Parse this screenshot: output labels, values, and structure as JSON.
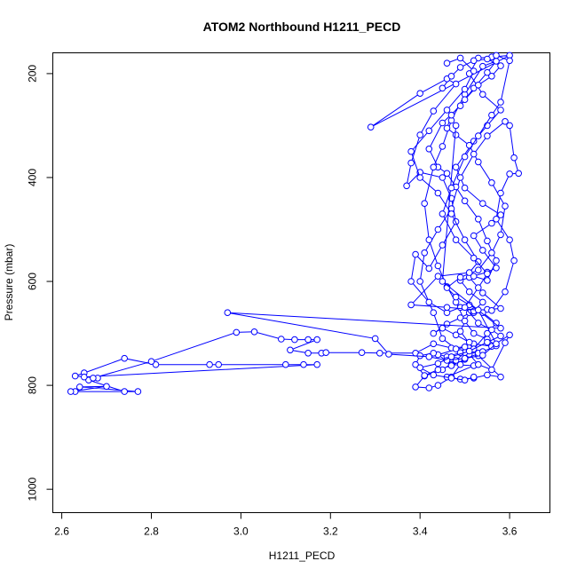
{
  "chart_data": {
    "type": "line",
    "title": "ATOM2 Northbound H1211_PECD",
    "xlabel": "H1211_PECD",
    "ylabel": "Pressure (mbar)",
    "xlim": [
      2.58,
      3.69
    ],
    "ylim": [
      1045,
      160
    ],
    "y_reversed": true,
    "grid": false,
    "legend": "none",
    "marker": "open-circle",
    "color": "#0000ff",
    "x_ticks": [
      2.6,
      2.8,
      3.0,
      3.2,
      3.4,
      3.6
    ],
    "x_tick_labels": [
      "2.6",
      "2.8",
      "3.0",
      "3.2",
      "3.4",
      "3.6"
    ],
    "y_ticks": [
      200,
      400,
      600,
      800,
      1000
    ],
    "y_tick_labels": [
      "200",
      "400",
      "600",
      "800",
      "1000"
    ],
    "series": [
      {
        "name": "",
        "points": [
          [
            2.63,
            812
          ],
          [
            2.77,
            812
          ],
          [
            2.64,
            803
          ],
          [
            2.7,
            802
          ],
          [
            2.62,
            812
          ],
          [
            2.74,
            812
          ],
          [
            2.66,
            790
          ],
          [
            2.68,
            786
          ],
          [
            2.63,
            782
          ],
          [
            2.65,
            776
          ],
          [
            2.74,
            748
          ],
          [
            2.81,
            760
          ],
          [
            2.93,
            760
          ],
          [
            2.95,
            760
          ],
          [
            3.1,
            760
          ],
          [
            3.14,
            760
          ],
          [
            3.17,
            760
          ],
          [
            2.65,
            784
          ],
          [
            2.67,
            786
          ],
          [
            2.8,
            754
          ],
          [
            2.99,
            698
          ],
          [
            3.03,
            697
          ],
          [
            3.09,
            711
          ],
          [
            3.12,
            712
          ],
          [
            3.15,
            712
          ],
          [
            3.17,
            712
          ],
          [
            3.11,
            732
          ],
          [
            3.15,
            738
          ],
          [
            3.18,
            738
          ],
          [
            3.19,
            737
          ],
          [
            3.27,
            737
          ],
          [
            3.31,
            738
          ],
          [
            3.39,
            738
          ],
          [
            3.43,
            720
          ],
          [
            3.47,
            728
          ],
          [
            3.5,
            726
          ],
          [
            3.44,
            741
          ],
          [
            3.47,
            760
          ],
          [
            3.52,
            762
          ],
          [
            3.46,
            784
          ],
          [
            3.49,
            788
          ],
          [
            3.52,
            786
          ],
          [
            3.55,
            780
          ],
          [
            3.58,
            784
          ],
          [
            3.53,
            743
          ],
          [
            3.49,
            696
          ],
          [
            3.51,
            660
          ],
          [
            3.55,
            654
          ],
          [
            3.58,
            652
          ],
          [
            3.54,
            622
          ],
          [
            3.51,
            592
          ],
          [
            3.55,
            582
          ],
          [
            3.57,
            574
          ],
          [
            3.54,
            540
          ],
          [
            3.52,
            512
          ],
          [
            3.56,
            488
          ],
          [
            3.58,
            472
          ],
          [
            3.54,
            450
          ],
          [
            3.5,
            420
          ],
          [
            3.48,
            380
          ],
          [
            3.52,
            330
          ],
          [
            3.55,
            300
          ],
          [
            3.58,
            270
          ],
          [
            3.54,
            240
          ],
          [
            3.51,
            200
          ],
          [
            3.53,
            170
          ],
          [
            3.56,
            168
          ],
          [
            3.6,
            165
          ],
          [
            3.29,
            303
          ],
          [
            3.4,
            238
          ],
          [
            3.46,
            210
          ],
          [
            3.48,
            220
          ],
          [
            3.43,
            272
          ],
          [
            3.4,
            318
          ],
          [
            3.38,
            372
          ],
          [
            3.37,
            416
          ],
          [
            3.4,
            390
          ],
          [
            3.45,
            400
          ],
          [
            3.47,
            440
          ],
          [
            3.48,
            485
          ],
          [
            3.45,
            530
          ],
          [
            3.42,
            575
          ],
          [
            3.39,
            548
          ],
          [
            3.38,
            600
          ],
          [
            3.42,
            640
          ],
          [
            3.46,
            660
          ],
          [
            3.49,
            650
          ],
          [
            3.52,
            660
          ],
          [
            3.56,
            656
          ],
          [
            3.59,
            620
          ],
          [
            3.61,
            560
          ],
          [
            3.6,
            520
          ],
          [
            3.57,
            480
          ],
          [
            3.58,
            430
          ],
          [
            3.6,
            393
          ],
          [
            3.62,
            392
          ],
          [
            3.61,
            362
          ],
          [
            3.6,
            300
          ],
          [
            3.59,
            292
          ],
          [
            3.55,
            320
          ],
          [
            3.52,
            355
          ],
          [
            3.49,
            400
          ],
          [
            3.47,
            460
          ],
          [
            3.44,
            500
          ],
          [
            3.41,
            545
          ],
          [
            3.4,
            600
          ],
          [
            3.43,
            660
          ],
          [
            3.45,
            710
          ],
          [
            3.48,
            730
          ],
          [
            3.51,
            740
          ],
          [
            3.53,
            760
          ],
          [
            3.56,
            770
          ],
          [
            3.59,
            718
          ],
          [
            3.6,
            703
          ],
          [
            3.56,
            725
          ],
          [
            3.52,
            720
          ],
          [
            3.49,
            760
          ],
          [
            3.47,
            784
          ],
          [
            3.44,
            800
          ],
          [
            3.42,
            805
          ],
          [
            3.39,
            803
          ],
          [
            3.41,
            782
          ],
          [
            3.45,
            770
          ],
          [
            3.48,
            752
          ],
          [
            3.5,
            737
          ],
          [
            3.53,
            738
          ],
          [
            3.51,
            717
          ],
          [
            3.48,
            703
          ],
          [
            3.45,
            690
          ],
          [
            3.43,
            700
          ],
          [
            3.46,
            682
          ],
          [
            3.49,
            670
          ],
          [
            3.52,
            657
          ],
          [
            3.54,
            640
          ],
          [
            3.51,
            620
          ],
          [
            3.49,
            598
          ],
          [
            3.52,
            590
          ],
          [
            3.55,
            598
          ],
          [
            3.57,
            560
          ],
          [
            3.55,
            522
          ],
          [
            3.53,
            480
          ],
          [
            3.5,
            445
          ],
          [
            3.48,
            418
          ],
          [
            3.46,
            392
          ],
          [
            3.44,
            380
          ],
          [
            3.42,
            345
          ],
          [
            3.45,
            295
          ],
          [
            3.49,
            262
          ],
          [
            3.52,
            228
          ],
          [
            3.55,
            198
          ],
          [
            3.57,
            176
          ],
          [
            3.54,
            186
          ],
          [
            3.5,
            240
          ],
          [
            3.47,
            290
          ],
          [
            3.45,
            340
          ],
          [
            3.43,
            380
          ],
          [
            3.41,
            450
          ],
          [
            3.42,
            520
          ],
          [
            3.44,
            570
          ],
          [
            3.46,
            610
          ],
          [
            3.48,
            640
          ],
          [
            3.5,
            676
          ],
          [
            3.52,
            700
          ],
          [
            3.55,
            711
          ],
          [
            3.57,
            724
          ],
          [
            3.54,
            735
          ],
          [
            3.5,
            750
          ],
          [
            3.47,
            762
          ],
          [
            3.44,
            770
          ],
          [
            3.41,
            781
          ],
          [
            3.39,
            760
          ],
          [
            3.4,
            743
          ],
          [
            3.43,
            738
          ],
          [
            3.46,
            745
          ],
          [
            3.49,
            737
          ],
          [
            3.52,
            730
          ],
          [
            3.55,
            700
          ],
          [
            3.57,
            680
          ],
          [
            3.54,
            660
          ],
          [
            3.51,
            645
          ],
          [
            3.48,
            630
          ],
          [
            3.46,
            612
          ],
          [
            3.49,
            592
          ],
          [
            3.53,
            578
          ],
          [
            3.56,
            545
          ],
          [
            3.58,
            510
          ],
          [
            3.59,
            455
          ],
          [
            3.56,
            410
          ],
          [
            3.53,
            370
          ],
          [
            3.51,
            338
          ],
          [
            3.48,
            318
          ],
          [
            3.46,
            305
          ],
          [
            3.47,
            280
          ],
          [
            3.5,
            250
          ],
          [
            3.53,
            222
          ],
          [
            3.56,
            205
          ],
          [
            3.58,
            185
          ],
          [
            3.55,
            172
          ],
          [
            3.52,
            175
          ],
          [
            3.49,
            188
          ],
          [
            3.47,
            205
          ],
          [
            3.45,
            228
          ]
        ]
      },
      {
        "name": "",
        "points": [
          [
            3.48,
            300
          ],
          [
            3.45,
            600
          ],
          [
            3.58,
            690
          ],
          [
            2.97,
            660
          ],
          [
            3.3,
            710
          ],
          [
            3.33,
            740
          ],
          [
            3.42,
            745
          ],
          [
            3.46,
            752
          ],
          [
            3.5,
            748
          ],
          [
            3.54,
            742
          ],
          [
            3.57,
            720
          ],
          [
            3.53,
            655
          ],
          [
            3.46,
            650
          ],
          [
            3.38,
            645
          ],
          [
            3.44,
            590
          ],
          [
            3.51,
            583
          ],
          [
            3.53,
            562
          ],
          [
            3.5,
            520
          ],
          [
            3.47,
            470
          ],
          [
            3.44,
            430
          ],
          [
            3.4,
            400
          ],
          [
            3.38,
            350
          ],
          [
            3.42,
            310
          ],
          [
            3.46,
            270
          ],
          [
            3.5,
            230
          ],
          [
            3.52,
            195
          ],
          [
            3.49,
            170
          ],
          [
            3.46,
            180
          ]
        ]
      },
      {
        "name": "",
        "points": [
          [
            3.57,
            165
          ],
          [
            3.6,
            175
          ],
          [
            3.58,
            255
          ],
          [
            3.56,
            280
          ],
          [
            3.53,
            320
          ],
          [
            3.5,
            360
          ],
          [
            3.47,
            420
          ],
          [
            3.45,
            470
          ],
          [
            3.48,
            520
          ],
          [
            3.52,
            555
          ],
          [
            3.55,
            585
          ],
          [
            3.53,
            612
          ],
          [
            3.5,
            650
          ],
          [
            3.53,
            680
          ],
          [
            3.56,
            693
          ],
          [
            3.58,
            705
          ],
          [
            3.55,
            717
          ],
          [
            3.51,
            734
          ],
          [
            3.47,
            745
          ],
          [
            3.44,
            758
          ],
          [
            3.4,
            766
          ],
          [
            3.43,
            780
          ],
          [
            3.47,
            786
          ],
          [
            3.5,
            790
          ],
          [
            3.52,
            784
          ]
        ]
      }
    ]
  }
}
